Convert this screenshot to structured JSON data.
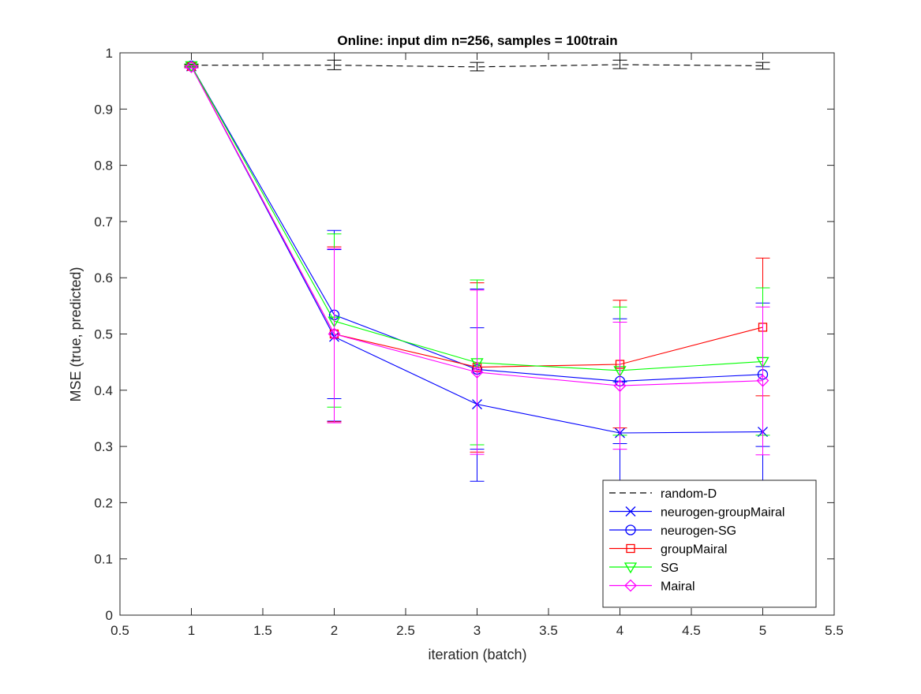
{
  "chart_data": {
    "type": "line",
    "title": "Online:  input dim n=256, samples = 100train",
    "xlabel": "iteration (batch)",
    "ylabel": "MSE (true, predicted)",
    "xlim": [
      0.5,
      5.5
    ],
    "ylim": [
      0,
      1
    ],
    "xticks": [
      0.5,
      1,
      1.5,
      2,
      2.5,
      3,
      3.5,
      4,
      4.5,
      5,
      5.5
    ],
    "xtick_labels": [
      "0.5",
      "1",
      "1.5",
      "2",
      "2.5",
      "3",
      "3.5",
      "4",
      "4.5",
      "5",
      "5.5"
    ],
    "yticks": [
      0,
      0.1,
      0.2,
      0.3,
      0.4,
      0.5,
      0.6,
      0.7,
      0.8,
      0.9,
      1
    ],
    "ytick_labels": [
      "0",
      "0.1",
      "0.2",
      "0.3",
      "0.4",
      "0.5",
      "0.6",
      "0.7",
      "0.8",
      "0.9",
      "1"
    ],
    "grid": false,
    "legend_position": "bottom-right",
    "x": [
      1,
      2,
      3,
      4,
      5
    ],
    "series": [
      {
        "name": "random-D",
        "color": "#000000",
        "line_style": "dashed",
        "marker": "none",
        "values": [
          0.978,
          0.978,
          0.975,
          0.979,
          0.977
        ],
        "err_low": [
          0.976,
          0.97,
          0.968,
          0.972,
          0.971
        ],
        "err_high": [
          0.98,
          0.987,
          0.983,
          0.987,
          0.983
        ]
      },
      {
        "name": "neurogen-groupMairal",
        "color": "#0000ff",
        "line_style": "solid",
        "marker": "x",
        "values": [
          0.976,
          0.495,
          0.375,
          0.324,
          0.326
        ],
        "err_low": [
          0.974,
          0.345,
          0.238,
          0.233,
          0.21
        ],
        "err_high": [
          0.978,
          0.65,
          0.511,
          0.415,
          0.442
        ]
      },
      {
        "name": "neurogen-SG",
        "color": "#0000ff",
        "line_style": "solid",
        "marker": "circle",
        "values": [
          0.977,
          0.534,
          0.437,
          0.416,
          0.428
        ],
        "err_low": [
          0.975,
          0.385,
          0.295,
          0.305,
          0.3
        ],
        "err_high": [
          0.979,
          0.684,
          0.58,
          0.527,
          0.555
        ]
      },
      {
        "name": "groupMairal",
        "color": "#ff0000",
        "line_style": "solid",
        "marker": "square",
        "values": [
          0.976,
          0.5,
          0.441,
          0.446,
          0.512
        ],
        "err_low": [
          0.974,
          0.344,
          0.29,
          0.333,
          0.39
        ],
        "err_high": [
          0.978,
          0.655,
          0.591,
          0.56,
          0.635
        ]
      },
      {
        "name": "SG",
        "color": "#00ff00",
        "line_style": "solid",
        "marker": "triangle-down",
        "values": [
          0.977,
          0.523,
          0.449,
          0.435,
          0.451
        ],
        "err_low": [
          0.975,
          0.37,
          0.303,
          0.32,
          0.32
        ],
        "err_high": [
          0.979,
          0.678,
          0.596,
          0.548,
          0.582
        ]
      },
      {
        "name": "Mairal",
        "color": "#ff00ff",
        "line_style": "solid",
        "marker": "diamond",
        "values": [
          0.975,
          0.5,
          0.432,
          0.408,
          0.417
        ],
        "err_low": [
          0.973,
          0.342,
          0.286,
          0.295,
          0.285
        ],
        "err_high": [
          0.977,
          0.652,
          0.578,
          0.521,
          0.548
        ]
      }
    ]
  }
}
